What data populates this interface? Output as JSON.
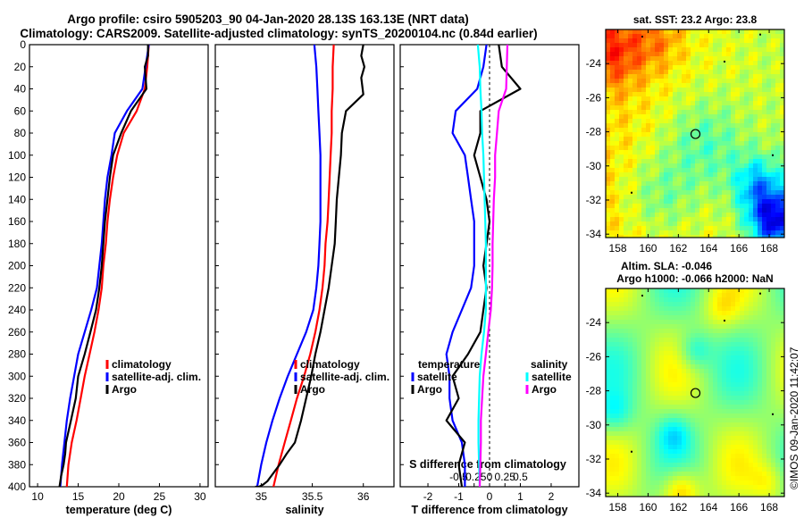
{
  "figure": {
    "title_line1": "Argo profile: csiro 5905203_90 04-Jan-2020 28.13S 163.13E (NRT data)",
    "title_line2": "Climatology: CARS2009. Satellite-adjusted climatology: synTS_20200104.nc (0.84d earlier)",
    "stamp": "©IMOS 09-Jan-2020 11:42:07"
  },
  "colors": {
    "climatology": "#ff0000",
    "satellite": "#0000ff",
    "argo": "#000000",
    "sat_salinity": "#00ffff",
    "clim_salinity": "#ff00ff"
  },
  "chart_data": [
    {
      "type": "line",
      "name": "temperature",
      "xlabel": "temperature (deg C)",
      "ylabel": "",
      "xlim": [
        9,
        31
      ],
      "ylim": [
        400,
        0
      ],
      "xticks": [
        "10",
        "15",
        "20",
        "25",
        "30"
      ],
      "xtick_values": [
        10,
        15,
        20,
        25,
        30
      ],
      "yticks": [
        "0",
        "20",
        "40",
        "60",
        "80",
        "100",
        "120",
        "140",
        "160",
        "180",
        "200",
        "220",
        "240",
        "260",
        "280",
        "300",
        "320",
        "340",
        "360",
        "380",
        "400"
      ],
      "ytick_values": [
        0,
        20,
        40,
        60,
        80,
        100,
        120,
        140,
        160,
        180,
        200,
        220,
        240,
        260,
        280,
        300,
        320,
        340,
        360,
        380,
        400
      ],
      "legend": [
        "climatology",
        "satellite-adj. clim.",
        "Argo"
      ],
      "series": [
        {
          "name": "climatology",
          "color": "#ff0000",
          "x": [
            23.7,
            23.5,
            23.2,
            22.2,
            20.6,
            19.8,
            19.3,
            18.9,
            18.6,
            18.4,
            18.1,
            17.9,
            17.5,
            17.0,
            16.4,
            15.8,
            15.3,
            14.8,
            14.2,
            13.8,
            13.6
          ],
          "y": [
            0,
            20,
            40,
            60,
            80,
            100,
            120,
            140,
            160,
            180,
            200,
            220,
            240,
            260,
            280,
            300,
            320,
            340,
            360,
            380,
            400
          ]
        },
        {
          "name": "satellite-adj. clim.",
          "color": "#0000ff",
          "x": [
            23.7,
            23.3,
            22.9,
            21.0,
            19.5,
            19.1,
            18.6,
            18.3,
            18.1,
            17.9,
            17.6,
            17.3,
            16.6,
            15.8,
            15.0,
            14.5,
            14.0,
            13.6,
            13.3,
            13.0,
            12.8
          ],
          "y": [
            0,
            20,
            40,
            60,
            80,
            100,
            120,
            140,
            160,
            180,
            200,
            220,
            240,
            260,
            280,
            300,
            320,
            340,
            360,
            380,
            400
          ]
        },
        {
          "name": "Argo",
          "color": "#000000",
          "x": [
            23.6,
            23.6,
            23.2,
            23.4,
            21.5,
            20.3,
            19.3,
            18.9,
            18.6,
            18.3,
            18.1,
            17.9,
            17.6,
            17.2,
            16.5,
            15.8,
            15.0,
            14.7,
            14.1,
            13.5,
            13.4,
            13.2,
            12.9,
            12.7
          ],
          "y": [
            0,
            10,
            20,
            40,
            60,
            80,
            100,
            120,
            140,
            160,
            180,
            200,
            220,
            240,
            260,
            280,
            300,
            320,
            340,
            360,
            370,
            380,
            390,
            400
          ]
        }
      ]
    },
    {
      "type": "line",
      "name": "salinity",
      "xlabel": "salinity",
      "ylabel": "",
      "xlim": [
        34.55,
        36.3
      ],
      "ylim": [
        400,
        0
      ],
      "xticks": [
        "35",
        "35.5",
        "36"
      ],
      "xtick_values": [
        35,
        35.5,
        36
      ],
      "legend": [
        "climatology",
        "satellite-adj. clim.",
        "Argo"
      ],
      "series": [
        {
          "name": "climatology",
          "color": "#ff0000",
          "x": [
            35.71,
            35.7,
            35.7,
            35.69,
            35.69,
            35.68,
            35.67,
            35.66,
            35.65,
            35.63,
            35.62,
            35.6,
            35.57,
            35.53,
            35.48,
            35.42,
            35.35,
            35.29,
            35.23,
            35.17,
            35.12
          ],
          "y": [
            0,
            20,
            40,
            60,
            80,
            100,
            120,
            140,
            160,
            180,
            200,
            220,
            240,
            260,
            280,
            300,
            320,
            340,
            360,
            380,
            400
          ]
        },
        {
          "name": "satellite-adj. clim.",
          "color": "#0000ff",
          "x": [
            35.52,
            35.54,
            35.55,
            35.56,
            35.57,
            35.58,
            35.58,
            35.58,
            35.58,
            35.57,
            35.56,
            35.54,
            35.51,
            35.44,
            35.35,
            35.26,
            35.18,
            35.11,
            35.05,
            35.0,
            34.96
          ],
          "y": [
            0,
            20,
            40,
            60,
            80,
            100,
            120,
            140,
            160,
            180,
            200,
            220,
            240,
            260,
            280,
            300,
            320,
            340,
            360,
            380,
            400
          ]
        },
        {
          "name": "Argo",
          "color": "#000000",
          "x": [
            36.0,
            35.98,
            36.01,
            35.98,
            36.0,
            35.83,
            35.79,
            35.78,
            35.76,
            35.74,
            35.73,
            35.72,
            35.69,
            35.66,
            35.62,
            35.58,
            35.53,
            35.49,
            35.44,
            35.39,
            35.33,
            35.25,
            35.18,
            35.1,
            35.06,
            35.02,
            34.98,
            34.94
          ],
          "y": [
            0,
            10,
            20,
            30,
            45,
            60,
            80,
            100,
            120,
            140,
            160,
            180,
            200,
            220,
            240,
            260,
            280,
            300,
            320,
            340,
            360,
            370,
            380,
            390,
            395,
            398,
            400,
            400
          ]
        }
      ]
    },
    {
      "type": "line",
      "name": "difference",
      "xlabel": "T difference from climatology",
      "xlabel_top": "S difference from climatology",
      "xlim": [
        -2.9,
        2.9
      ],
      "ylim": [
        400,
        0
      ],
      "xticks": [
        "-2",
        "-1",
        "0",
        "1",
        "2"
      ],
      "xtick_values": [
        -2,
        -1,
        0,
        1,
        2
      ],
      "sticks": [
        "-0.5",
        "-0.25",
        "0",
        "0.25",
        "0.5"
      ],
      "stick_values": [
        -0.5,
        -0.25,
        0,
        0.25,
        0.5
      ],
      "legend_temperature_title": "temperature",
      "legend_salinity_title": "salinity",
      "legend_entries": [
        "satellite",
        "Argo",
        "satellite",
        "Argo"
      ],
      "series": [
        {
          "name": "T satellite",
          "color": "#0000ff",
          "x": [
            -0.1,
            -0.2,
            -0.4,
            -1.1,
            -1.2,
            -0.8,
            -0.7,
            -0.6,
            -0.5,
            -0.5,
            -0.5,
            -0.6,
            -0.9,
            -1.2,
            -1.4,
            -1.3,
            -1.3,
            -1.2,
            -0.9,
            -0.8,
            -0.8
          ],
          "y": [
            0,
            20,
            40,
            60,
            80,
            100,
            120,
            140,
            160,
            180,
            200,
            220,
            240,
            260,
            280,
            300,
            320,
            340,
            360,
            380,
            400
          ]
        },
        {
          "name": "T Argo",
          "color": "#000000",
          "x": [
            0.3,
            0.4,
            1.0,
            -0.3,
            -0.3,
            -0.5,
            -0.3,
            -0.1,
            0,
            -0.1,
            -0.2,
            -0.1,
            -0.2,
            -0.3,
            -0.7,
            -1.2,
            -1.0,
            -1.4,
            -0.8,
            -1.0,
            -0.9
          ],
          "y": [
            0,
            20,
            40,
            60,
            80,
            100,
            120,
            140,
            160,
            180,
            200,
            220,
            240,
            260,
            280,
            300,
            320,
            340,
            360,
            380,
            400
          ]
        },
        {
          "name": "S satellite",
          "color": "#00ffff",
          "x": [
            -0.19,
            -0.16,
            -0.15,
            -0.13,
            -0.12,
            -0.1,
            -0.09,
            -0.08,
            -0.07,
            -0.06,
            -0.06,
            -0.06,
            -0.06,
            -0.09,
            -0.13,
            -0.16,
            -0.17,
            -0.18,
            -0.18,
            -0.17,
            -0.16
          ],
          "y": [
            0,
            20,
            40,
            60,
            80,
            100,
            120,
            140,
            160,
            180,
            200,
            220,
            240,
            260,
            280,
            300,
            320,
            340,
            360,
            380,
            400
          ]
        },
        {
          "name": "S Argo",
          "color": "#ff00ff",
          "x": [
            0.29,
            0.28,
            0.27,
            0.15,
            0.12,
            0.09,
            0.09,
            0.07,
            0.06,
            0.05,
            0.05,
            0.04,
            0.02,
            -0.02,
            -0.06,
            -0.1,
            -0.12,
            -0.14,
            -0.14,
            -0.15,
            -0.16
          ],
          "y": [
            0,
            20,
            40,
            60,
            80,
            100,
            120,
            140,
            160,
            180,
            200,
            220,
            240,
            260,
            280,
            300,
            320,
            340,
            360,
            380,
            400
          ]
        }
      ]
    },
    {
      "type": "heatmap",
      "name": "sst_map",
      "title": "sat. SST: 23.2 Argo: 23.8",
      "xticks": [
        "158",
        "160",
        "162",
        "164",
        "166",
        "168"
      ],
      "xtick_values": [
        158,
        160,
        162,
        164,
        166,
        168
      ],
      "yticks": [
        "-24",
        "-26",
        "-28",
        "-30",
        "-32",
        "-34"
      ],
      "ytick_values": [
        -24,
        -26,
        -28,
        -30,
        -32,
        -34
      ],
      "xlim": [
        157.2,
        169.0
      ],
      "ylim": [
        -34.2,
        -22.0
      ],
      "argo_position": {
        "lon": 163.13,
        "lat": -28.13
      }
    },
    {
      "type": "heatmap",
      "name": "sla_map",
      "title_line1": "Altim. SLA: -0.046",
      "title_line2": "Argo h1000: -0.066 h2000: NaN",
      "xticks": [
        "158",
        "160",
        "162",
        "164",
        "166",
        "168"
      ],
      "xtick_values": [
        158,
        160,
        162,
        164,
        166,
        168
      ],
      "yticks": [
        "-24",
        "-26",
        "-28",
        "-30",
        "-32",
        "-34"
      ],
      "ytick_values": [
        -24,
        -26,
        -28,
        -30,
        -32,
        -34
      ],
      "xlim": [
        157.2,
        169.0
      ],
      "ylim": [
        -34.2,
        -22.0
      ],
      "argo_position": {
        "lon": 163.13,
        "lat": -28.13
      }
    }
  ]
}
